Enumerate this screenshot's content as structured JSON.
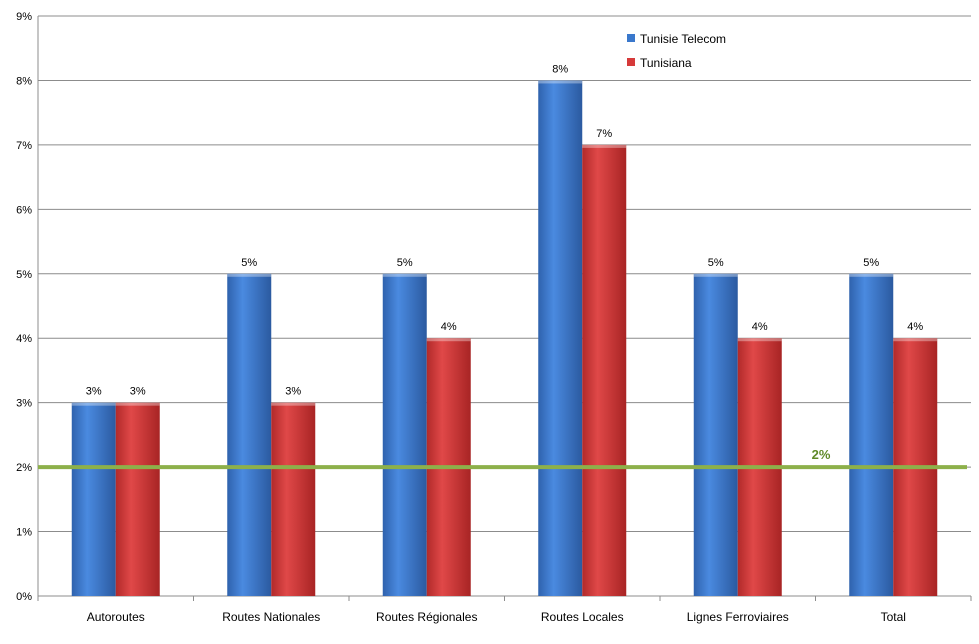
{
  "chart_data": {
    "type": "bar",
    "categories": [
      "Autoroutes",
      "Routes Nationales",
      "Routes Régionales",
      "Routes Locales",
      "Lignes Ferroviaires",
      "Total"
    ],
    "series": [
      {
        "name": "Tunisie Telecom",
        "values": [
          3,
          5,
          5,
          8,
          5,
          5
        ],
        "labels": [
          "3%",
          "5%",
          "5%",
          "8%",
          "5%",
          "5%"
        ],
        "color": "#3a78cc"
      },
      {
        "name": "Tunisiana",
        "values": [
          3,
          3,
          4,
          7,
          4,
          4
        ],
        "labels": [
          "3%",
          "3%",
          "4%",
          "7%",
          "4%",
          "4%"
        ],
        "color": "#d63a3a"
      }
    ],
    "yticks": [
      "0%",
      "1%",
      "2%",
      "3%",
      "4%",
      "5%",
      "6%",
      "7%",
      "8%",
      "9%"
    ],
    "ylim": [
      0,
      9
    ],
    "grid": true,
    "legend_position": "top-right",
    "reference_line": {
      "value": 2,
      "label": "2%",
      "color": "#8db04a"
    }
  }
}
